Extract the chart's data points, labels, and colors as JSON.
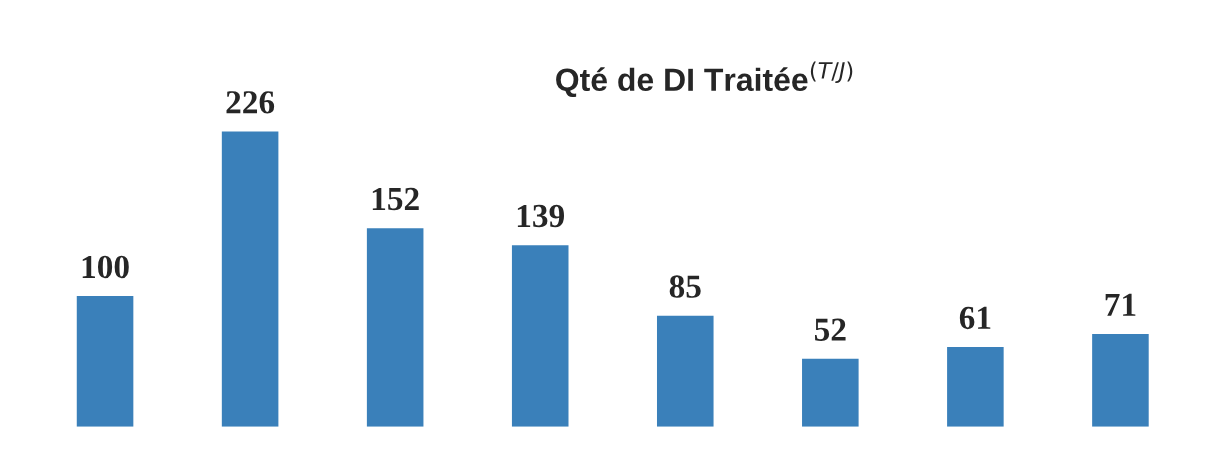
{
  "chart_data": {
    "type": "bar",
    "title": "Qté de DI Traitée$^{(T/J)}$",
    "categories": [
      null,
      null,
      null,
      null,
      null,
      null,
      null,
      null
    ],
    "values": [
      100,
      226,
      152,
      139,
      85,
      52,
      61,
      71
    ],
    "color": "#3a80ba",
    "data_labels": true,
    "grid": false,
    "legend": false
  }
}
